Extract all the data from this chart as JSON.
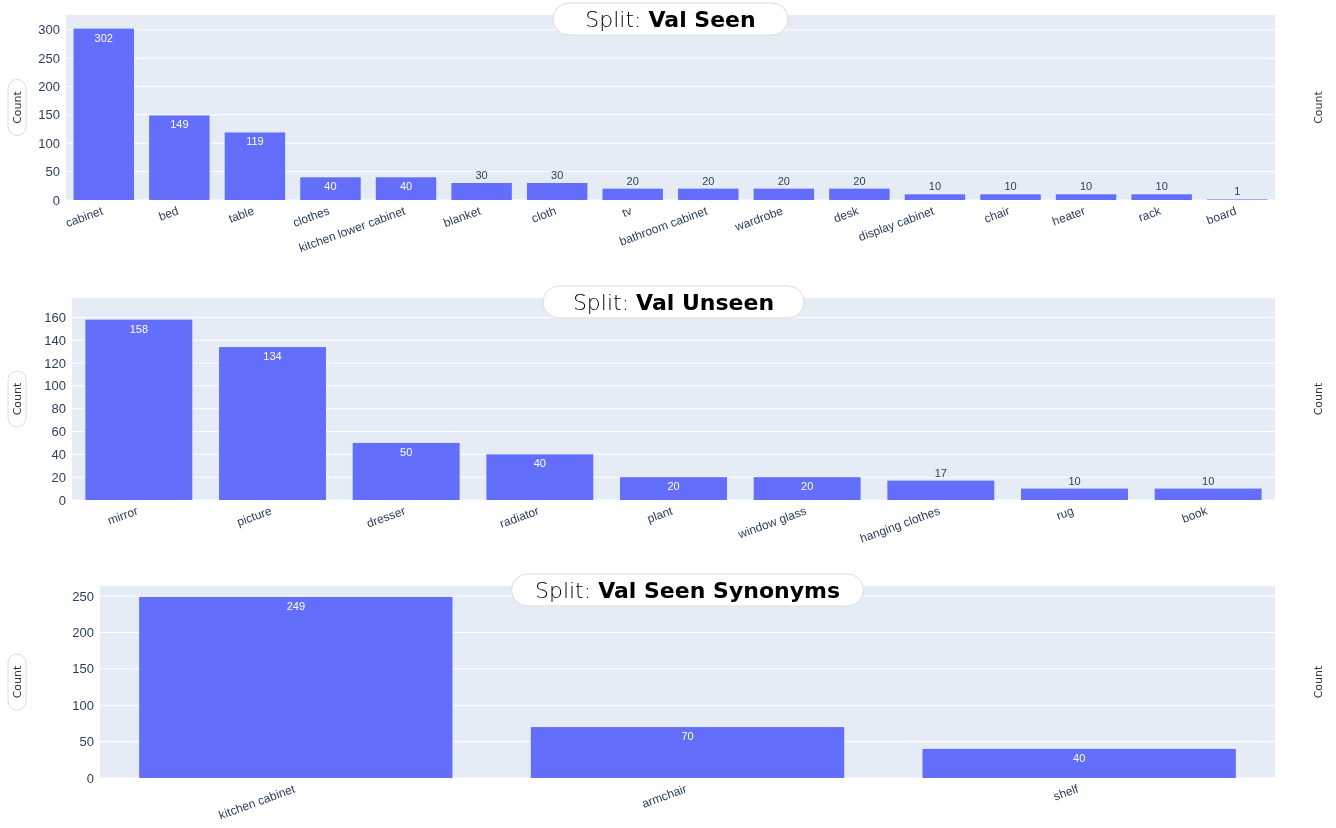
{
  "chart_data": [
    {
      "type": "bar",
      "title": "Split: Val Seen",
      "ylabel": "Count",
      "y2label": "Count",
      "categories": [
        "cabinet",
        "bed",
        "table",
        "clothes",
        "kitchen lower cabinet",
        "blanket",
        "cloth",
        "tv",
        "bathroom cabinet",
        "wardrobe",
        "desk",
        "display cabinet",
        "chair",
        "heater",
        "rack",
        "board"
      ],
      "values": [
        302,
        149,
        119,
        40,
        40,
        30,
        30,
        20,
        20,
        20,
        20,
        10,
        10,
        10,
        10,
        1
      ],
      "color": "#636efa",
      "ylim": [
        0,
        326
      ],
      "yticks": [
        0,
        50,
        100,
        150,
        200,
        250,
        300
      ],
      "grid": "y",
      "data_labels": true
    },
    {
      "type": "bar",
      "title": "Split: Val Unseen",
      "ylabel": "Count",
      "y2label": "Count",
      "categories": [
        "mirror",
        "picture",
        "dresser",
        "radiator",
        "plant",
        "window glass",
        "hanging clothes",
        "rug",
        "book"
      ],
      "values": [
        158,
        134,
        50,
        40,
        20,
        20,
        17,
        10,
        10
      ],
      "color": "#636efa",
      "ylim": [
        0,
        177
      ],
      "yticks": [
        0,
        20,
        40,
        60,
        80,
        100,
        120,
        140,
        160
      ],
      "grid": "y",
      "data_labels": true
    },
    {
      "type": "bar",
      "title": "Split: Val Seen Synonyms",
      "ylabel": "Count",
      "y2label": "Count",
      "categories": [
        "kitchen cabinet",
        "armchair",
        "shelf"
      ],
      "values": [
        249,
        70,
        40
      ],
      "color": "#636efa",
      "ylim": [
        0,
        264
      ],
      "yticks": [
        0,
        50,
        100,
        150,
        200,
        250
      ],
      "grid": "y",
      "data_labels": true
    }
  ]
}
